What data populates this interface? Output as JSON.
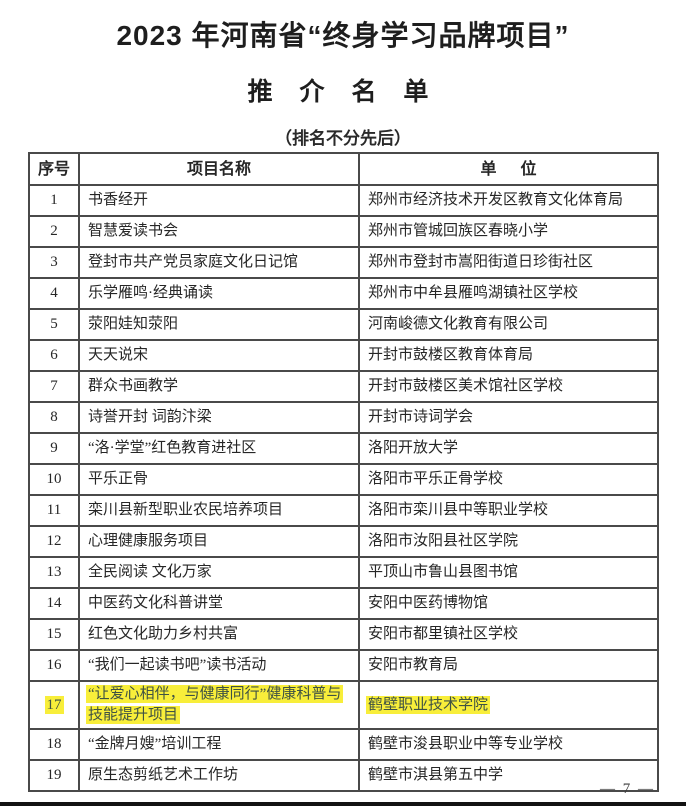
{
  "page": {
    "title": "2023 年河南省“终身学习品牌项目”",
    "subtitle": "推 介 名 单",
    "note": "（排名不分先后）",
    "page_number": "— 7 —"
  },
  "colors": {
    "highlight": "#f8ee3a",
    "highlight_text": "#3f5244",
    "table_border": "#4a4a4a",
    "text": "#262626"
  },
  "table": {
    "headers": {
      "no": "序号",
      "name": "项目名称",
      "unit": "单      位"
    },
    "rows": [
      {
        "no": "1",
        "name": "书香经开",
        "unit": "郑州市经济技术开发区教育文化体育局",
        "highlight": false
      },
      {
        "no": "2",
        "name": "智慧爱读书会",
        "unit": "郑州市管城回族区春晓小学",
        "highlight": false
      },
      {
        "no": "3",
        "name": "登封市共产党员家庭文化日记馆",
        "unit": "郑州市登封市嵩阳街道日珍街社区",
        "highlight": false
      },
      {
        "no": "4",
        "name": "乐学雁鸣·经典诵读",
        "unit": "郑州市中牟县雁鸣湖镇社区学校",
        "highlight": false
      },
      {
        "no": "5",
        "name": "荥阳娃知荥阳",
        "unit": "河南峻德文化教育有限公司",
        "highlight": false
      },
      {
        "no": "6",
        "name": "天天说宋",
        "unit": "开封市鼓楼区教育体育局",
        "highlight": false
      },
      {
        "no": "7",
        "name": "群众书画教学",
        "unit": "开封市鼓楼区美术馆社区学校",
        "highlight": false
      },
      {
        "no": "8",
        "name": "诗誉开封 词韵汴梁",
        "unit": "开封市诗词学会",
        "highlight": false
      },
      {
        "no": "9",
        "name": "“洛·学堂”红色教育进社区",
        "unit": "洛阳开放大学",
        "highlight": false
      },
      {
        "no": "10",
        "name": "平乐正骨",
        "unit": "洛阳市平乐正骨学校",
        "highlight": false
      },
      {
        "no": "11",
        "name": "栾川县新型职业农民培养项目",
        "unit": "洛阳市栾川县中等职业学校",
        "highlight": false
      },
      {
        "no": "12",
        "name": "心理健康服务项目",
        "unit": "洛阳市汝阳县社区学院",
        "highlight": false
      },
      {
        "no": "13",
        "name": "全民阅读 文化万家",
        "unit": "平顶山市鲁山县图书馆",
        "highlight": false
      },
      {
        "no": "14",
        "name": "中医药文化科普讲堂",
        "unit": "安阳中医药博物馆",
        "highlight": false
      },
      {
        "no": "15",
        "name": "红色文化助力乡村共富",
        "unit": "安阳市都里镇社区学校",
        "highlight": false
      },
      {
        "no": "16",
        "name": "“我们一起读书吧”读书活动",
        "unit": "安阳市教育局",
        "highlight": false
      },
      {
        "no": "17",
        "name": "“让爱心相伴，与健康同行”健康科普与技能提升项目",
        "unit": "鹤壁职业技术学院",
        "highlight": true
      },
      {
        "no": "18",
        "name": "“金牌月嫂”培训工程",
        "unit": "鹤壁市浚县职业中等专业学校",
        "highlight": false
      },
      {
        "no": "19",
        "name": "原生态剪纸艺术工作坊",
        "unit": "鹤壁市淇县第五中学",
        "highlight": false
      }
    ]
  }
}
